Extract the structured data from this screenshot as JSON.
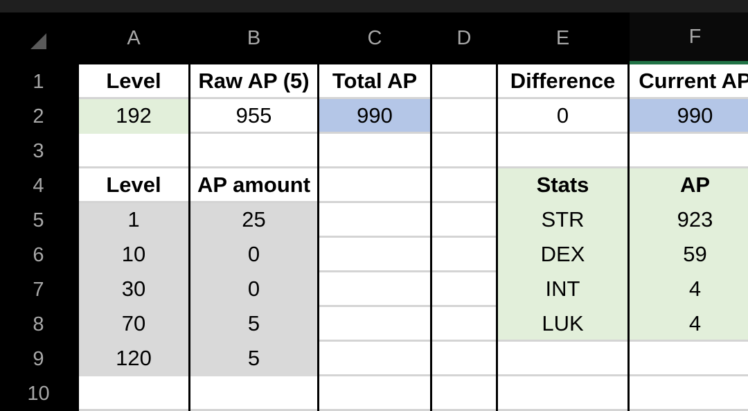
{
  "columns": [
    "A",
    "B",
    "C",
    "D",
    "E",
    "F"
  ],
  "rows": [
    "1",
    "2",
    "3",
    "4",
    "5",
    "6",
    "7",
    "8",
    "9",
    "10"
  ],
  "cells": {
    "A1": "Level",
    "B1": "Raw AP (5)",
    "C1": "Total AP",
    "D1": "",
    "E1": "Difference",
    "F1": "Current AP",
    "A2": "192",
    "B2": "955",
    "C2": "990",
    "D2": "",
    "E2": "0",
    "F2": "990",
    "A3": "",
    "B3": "",
    "C3": "",
    "D3": "",
    "E3": "",
    "F3": "",
    "A4": "Level",
    "B4": "AP amount",
    "C4": "",
    "D4": "",
    "E4": "Stats",
    "F4": "AP",
    "A5": "1",
    "B5": "25",
    "C5": "",
    "D5": "",
    "E5": "STR",
    "F5": "923",
    "A6": "10",
    "B6": "0",
    "C6": "",
    "D6": "",
    "E6": "DEX",
    "F6": "59",
    "A7": "30",
    "B7": "0",
    "C7": "",
    "D7": "",
    "E7": "INT",
    "F7": "4",
    "A8": "70",
    "B8": "5",
    "C8": "",
    "D8": "",
    "E8": "LUK",
    "F8": "4",
    "A9": "120",
    "B9": "5",
    "C9": "",
    "D9": "",
    "E9": "",
    "F9": "",
    "A10": "",
    "B10": "",
    "C10": "",
    "D10": "",
    "E10": "",
    "F10": ""
  },
  "colors": {
    "header_bg": "#000000",
    "header_text": "#a8a8a8",
    "selected_column_accent": "#217346",
    "gray_fill": "#d9d9d9",
    "green_fill": "#e2efda",
    "blue_fill": "#b4c6e7"
  },
  "selected_column": "F"
}
